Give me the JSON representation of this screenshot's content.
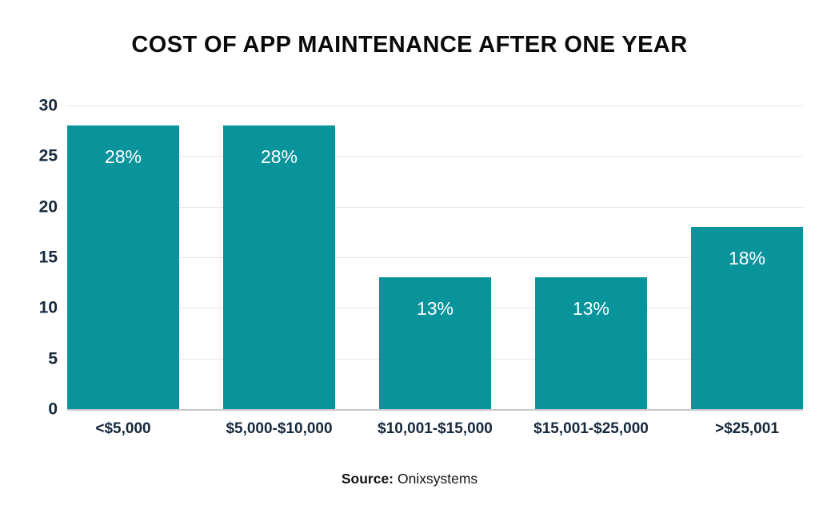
{
  "title": "COST OF APP MAINTENANCE AFTER ONE YEAR",
  "source": {
    "prefix": "Source:",
    "name": "Onixsystems"
  },
  "colors": {
    "bar": "#09949c",
    "axis_text": "#16283c",
    "gridline": "#e4e4e7",
    "baseline": "#c9c9cc",
    "bar_label": "#ffffff",
    "title": "#0a0a0a"
  },
  "chart_data": {
    "type": "bar",
    "title": "COST OF APP MAINTENANCE AFTER ONE YEAR",
    "categories": [
      "<$5,000",
      "$5,000-$10,000",
      "$10,001-$15,000",
      "$15,001-$25,000",
      ">$25,001"
    ],
    "values": [
      28,
      28,
      13,
      13,
      18
    ],
    "bar_labels": [
      "28%",
      "28%",
      "13%",
      "13%",
      "18%"
    ],
    "xlabel": "",
    "ylabel": "",
    "ylim": [
      0,
      30
    ],
    "yticks": [
      0,
      5,
      10,
      15,
      20,
      25,
      30
    ],
    "grid": "horizontal",
    "legend": "none",
    "source": "Onixsystems"
  }
}
